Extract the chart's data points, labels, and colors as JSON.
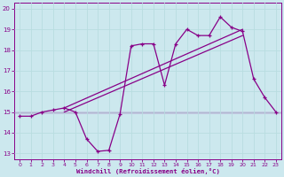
{
  "xlabel": "Windchill (Refroidissement éolien,°C)",
  "background_color": "#cce8ee",
  "grid_color": "#aadddd",
  "line_color": "#880088",
  "xlim": [
    -0.5,
    23.5
  ],
  "ylim": [
    12.7,
    20.3
  ],
  "xticks": [
    0,
    1,
    2,
    3,
    4,
    5,
    6,
    7,
    8,
    9,
    10,
    11,
    12,
    13,
    14,
    15,
    16,
    17,
    18,
    19,
    20,
    21,
    22,
    23
  ],
  "yticks": [
    13,
    14,
    15,
    16,
    17,
    18,
    19,
    20
  ],
  "hours": [
    0,
    1,
    2,
    3,
    4,
    5,
    6,
    7,
    8,
    9,
    10,
    11,
    12,
    13,
    14,
    15,
    16,
    17,
    18,
    19,
    20,
    21,
    22,
    23
  ],
  "temp_line": [
    14.8,
    14.8,
    15.0,
    15.1,
    15.2,
    15.0,
    13.7,
    13.1,
    13.15,
    14.9,
    18.2,
    18.3,
    18.3,
    16.3,
    18.3,
    19.0,
    18.7,
    18.7,
    19.6,
    19.1,
    18.9,
    16.6,
    15.7,
    15.0
  ],
  "flat_line_y": 15.0,
  "flat_line_x_start": 0,
  "flat_line_x_end": 23,
  "trend1_x": [
    4,
    20
  ],
  "trend1_y": [
    15.2,
    19.0
  ],
  "trend2_x": [
    4,
    20
  ],
  "trend2_y": [
    15.0,
    18.7
  ]
}
